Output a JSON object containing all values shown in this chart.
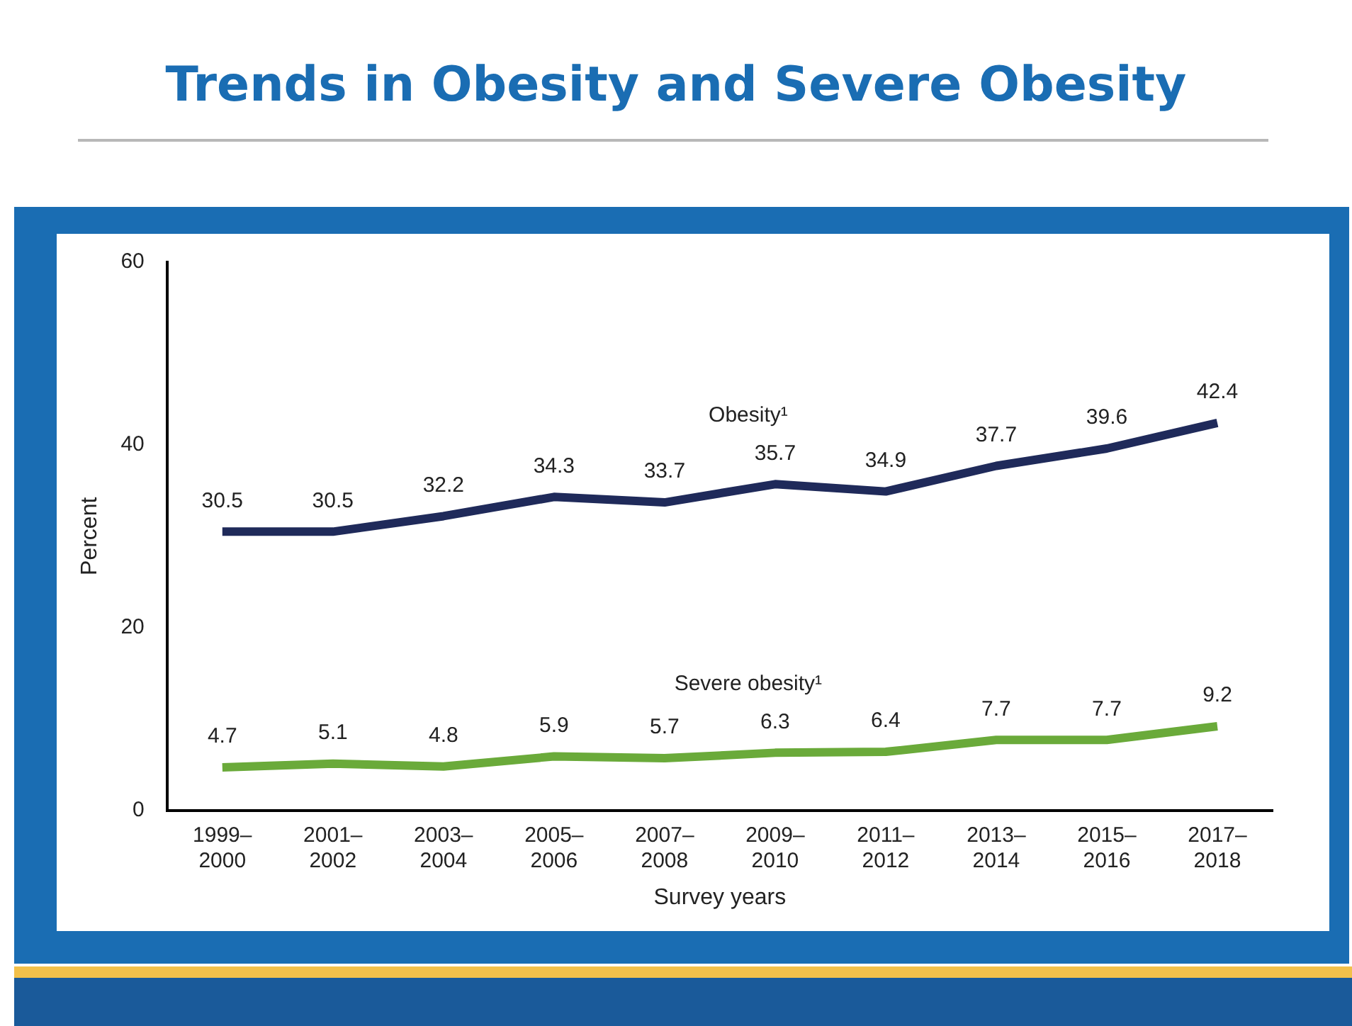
{
  "chart_data": {
    "type": "line",
    "title": "Trends in Obesity and Severe Obesity",
    "xlabel": "Survey years",
    "ylabel": "Percent",
    "categories": [
      "1999–2000",
      "2001–2002",
      "2003–2004",
      "2005–2006",
      "2007–2008",
      "2009–2010",
      "2011–2012",
      "2013–2014",
      "2015–2016",
      "2017–2018"
    ],
    "series": [
      {
        "name": "Obesity¹",
        "color": "#1f2a5a",
        "values": [
          30.5,
          30.5,
          32.2,
          34.3,
          33.7,
          35.7,
          34.9,
          37.7,
          39.6,
          42.4
        ]
      },
      {
        "name": "Severe obesity¹",
        "color": "#6aaa3a",
        "values": [
          4.7,
          5.1,
          4.8,
          5.9,
          5.7,
          6.3,
          6.4,
          7.7,
          7.7,
          9.2
        ]
      }
    ],
    "ylim": [
      0,
      60
    ],
    "yticks": [
      0,
      20,
      40,
      60
    ],
    "grid": false,
    "legend": false,
    "marker": "none",
    "line_style": "solid",
    "data_labels": true
  }
}
